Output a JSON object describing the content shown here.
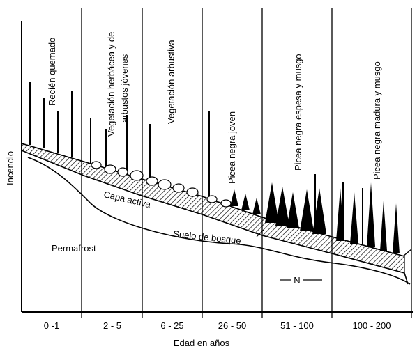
{
  "diagram": {
    "y_axis_label": "Incendio",
    "x_axis_label": "Edad en años",
    "stages": [
      {
        "name": "Recién quemado",
        "age": "0 -1"
      },
      {
        "name": "Vegetación herbácea y de arbustos jóvenes",
        "name_line1": "Vegetación herbácea y de",
        "name_line2": "arbustos jóvenes",
        "age": "2 - 5"
      },
      {
        "name": "Vegetación arbustiva",
        "age": "6 - 25"
      },
      {
        "name": "Picea negra joven",
        "age": "26 - 50"
      },
      {
        "name": "Picea negra espesa y musgo",
        "age": "51 - 100"
      },
      {
        "name": "Picea negra madura y musgo",
        "age": "100 - 200"
      }
    ],
    "layers": {
      "active": "Capa activa",
      "forest_floor": "Suelo de bosque",
      "permafrost": "Permafrost"
    },
    "north_marker": "N"
  }
}
